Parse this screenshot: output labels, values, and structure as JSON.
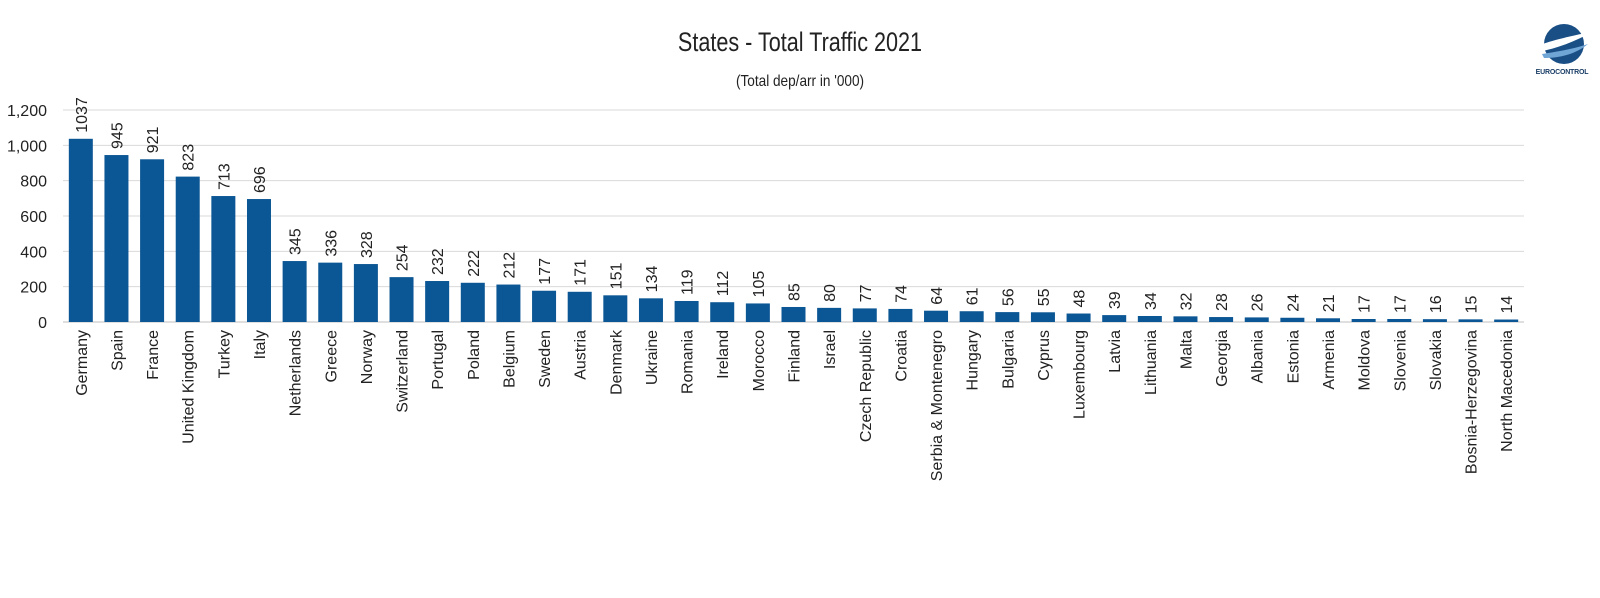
{
  "chart_data": {
    "type": "bar",
    "title": "States - Total Traffic 2021",
    "subtitle": "(Total dep/arr in '000)",
    "xlabel": "",
    "ylabel": "",
    "ylim": [
      0,
      1200
    ],
    "yticks": [
      0,
      200,
      400,
      600,
      800,
      1000,
      1200
    ],
    "ytick_labels": [
      "0",
      "200",
      "400",
      "600",
      "800",
      "1,000",
      "1,200"
    ],
    "grid": true,
    "bar_color": "#0b5694",
    "categories": [
      "Germany",
      "Spain",
      "France",
      "United Kingdom",
      "Turkey",
      "Italy",
      "Netherlands",
      "Greece",
      "Norway",
      "Switzerland",
      "Portugal",
      "Poland",
      "Belgium",
      "Sweden",
      "Austria",
      "Denmark",
      "Ukraine",
      "Romania",
      "Ireland",
      "Morocco",
      "Finland",
      "Israel",
      "Czech Republic",
      "Croatia",
      "Serbia & Montenegro",
      "Hungary",
      "Bulgaria",
      "Cyprus",
      "Luxembourg",
      "Latvia",
      "Lithuania",
      "Malta",
      "Georgia",
      "Albania",
      "Estonia",
      "Armenia",
      "Moldova",
      "Slovenia",
      "Slovakia",
      "Bosnia-Herzegovina",
      "North Macedonia"
    ],
    "values": [
      1037,
      945,
      921,
      823,
      713,
      696,
      345,
      336,
      328,
      254,
      232,
      222,
      212,
      177,
      171,
      151,
      134,
      119,
      112,
      105,
      85,
      80,
      77,
      74,
      64,
      61,
      56,
      55,
      48,
      39,
      34,
      32,
      28,
      26,
      24,
      21,
      17,
      17,
      16,
      15,
      14
    ]
  },
  "logo": {
    "text": "EUROCONTROL",
    "color": "#1a3e66",
    "icon": "eurocontrol-logo-icon"
  }
}
